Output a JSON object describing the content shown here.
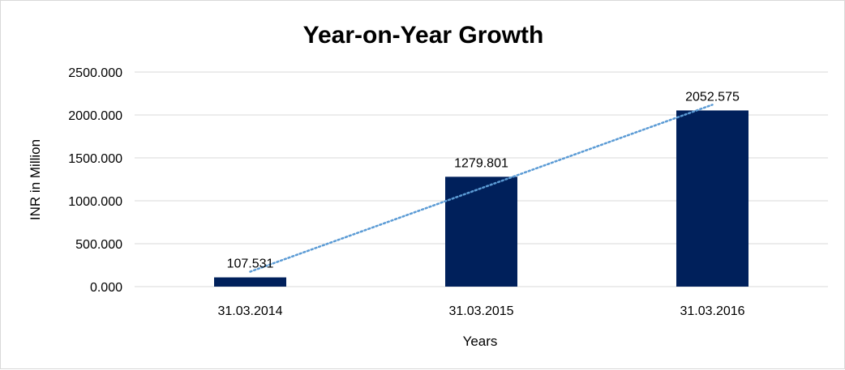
{
  "chart_data": {
    "type": "bar",
    "title": "Year-on-Year Growth",
    "xlabel": "Years",
    "ylabel": "INR in Million",
    "categories": [
      "31.03.2014",
      "31.03.2015",
      "31.03.2016"
    ],
    "values": [
      107.531,
      1279.801,
      2052.575
    ],
    "data_labels": [
      "107.531",
      "1279.801",
      "2052.575"
    ],
    "y_ticks": [
      "0.000",
      "500.000",
      "1000.000",
      "1500.000",
      "2000.000",
      "2500.000"
    ],
    "ylim": [
      0,
      2500
    ],
    "grid": true,
    "trendline": "linear",
    "bar_color": "#00205b",
    "trendline_color": "#5b9bd5",
    "grid_color": "#d9d9d9"
  }
}
